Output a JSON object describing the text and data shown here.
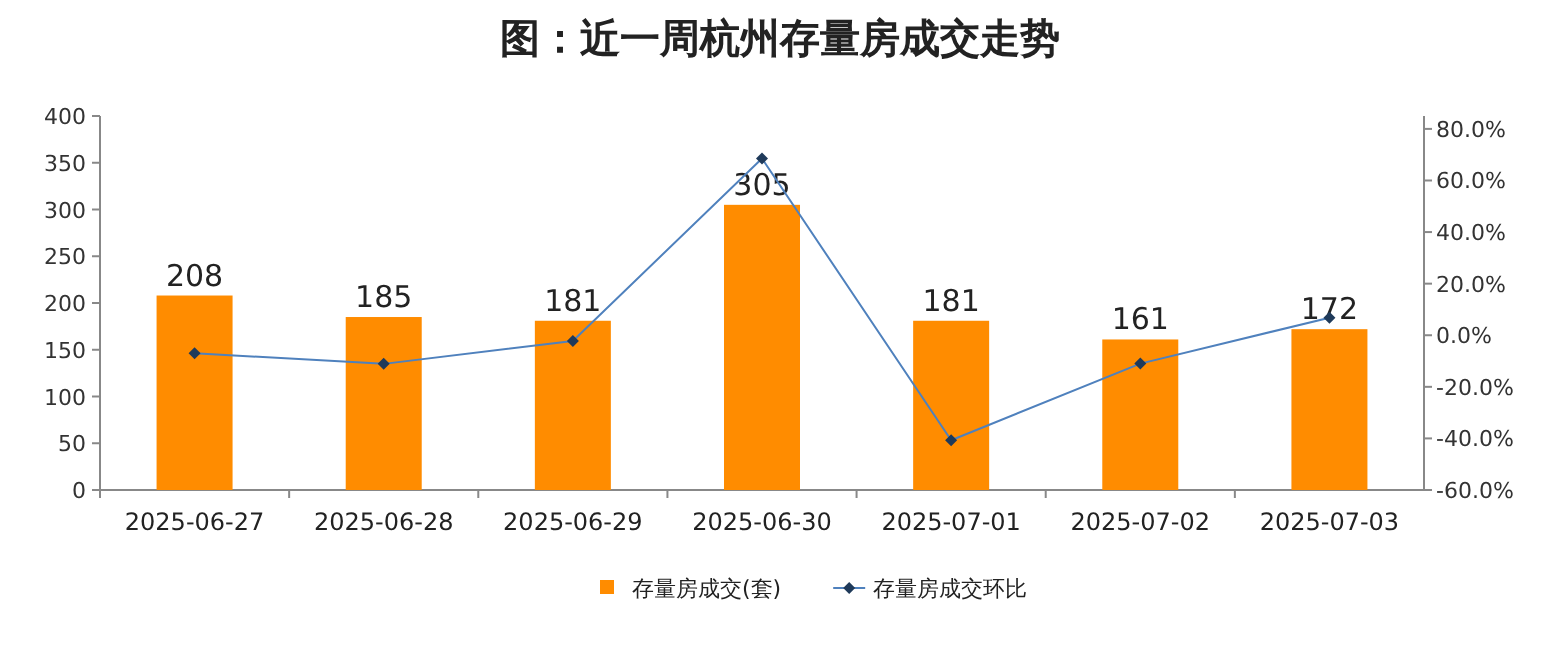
{
  "chart_data": {
    "type": "bar",
    "title": "图：近一周杭州存量房成交走势",
    "categories": [
      "2025-06-27",
      "2025-06-28",
      "2025-06-29",
      "2025-06-30",
      "2025-07-01",
      "2025-07-02",
      "2025-07-03"
    ],
    "series": [
      {
        "name": "存量房成交(套)",
        "color": "#ff8c00",
        "values": [
          208,
          185,
          181,
          305,
          181,
          161,
          172
        ],
        "value_labels": [
          "208",
          "185",
          "181",
          "305",
          "181",
          "161",
          "172"
        ]
      },
      {
        "name": "存量房成交环比",
        "type": "line",
        "axis": "y2",
        "color": "#4f81bd",
        "marker": "diamond",
        "values": [
          -7,
          -11.1,
          -2.2,
          68.5,
          -40.7,
          -11.0,
          6.8
        ]
      }
    ],
    "ylim": [
      0,
      400
    ],
    "yticks": [
      0,
      50,
      100,
      150,
      200,
      250,
      300,
      350,
      400
    ],
    "y2lim": [
      -60,
      85
    ],
    "y2ticks": [
      {
        "value": -60,
        "label": "-60.0%"
      },
      {
        "value": -40,
        "label": "-40.0%"
      },
      {
        "value": -20,
        "label": "-20.0%"
      },
      {
        "value": 0,
        "label": "0.0%"
      },
      {
        "value": 20,
        "label": "20.0%"
      },
      {
        "value": 40,
        "label": "40.0%"
      },
      {
        "value": 60,
        "label": "60.0%"
      },
      {
        "value": 80,
        "label": "80.0%"
      }
    ],
    "grid": false,
    "legend": "bottom"
  }
}
